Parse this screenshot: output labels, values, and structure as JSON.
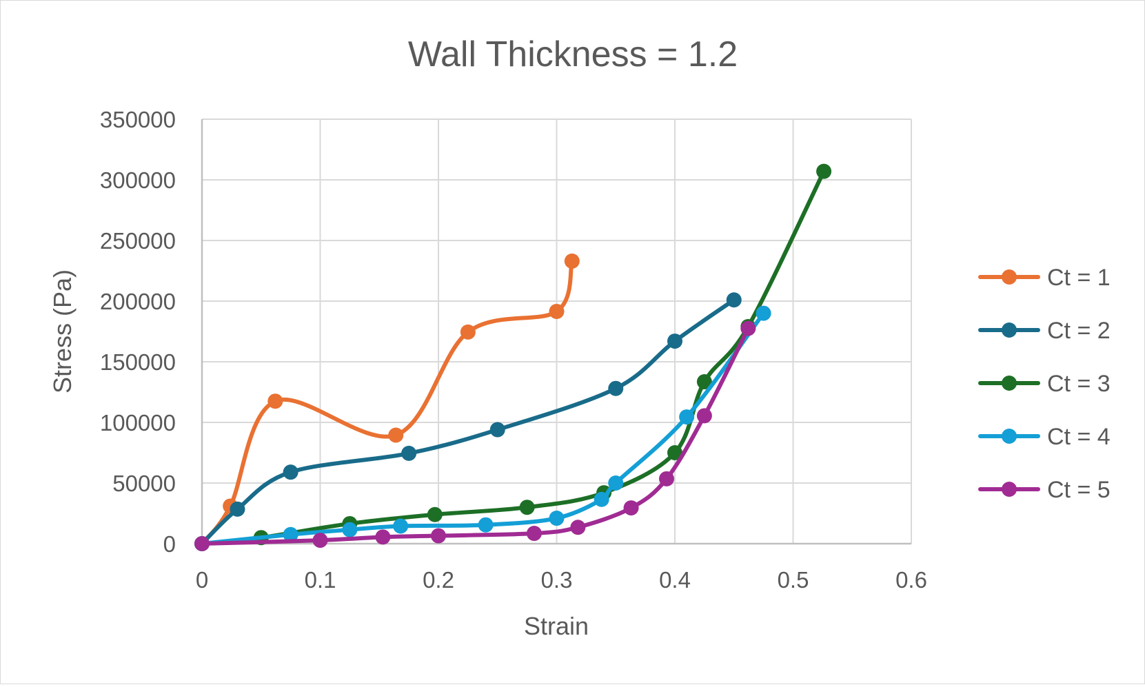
{
  "chart_data": {
    "type": "line",
    "title": "Wall Thickness  = 1.2",
    "xlabel": "Strain",
    "ylabel": "Stress (Pa)",
    "xlim": [
      0,
      0.6
    ],
    "ylim": [
      0,
      350000
    ],
    "xticks": [
      "0",
      "0.1",
      "0.2",
      "0.3",
      "0.4",
      "0.5",
      "0.6"
    ],
    "yticks": [
      "0",
      "50000",
      "100000",
      "150000",
      "200000",
      "250000",
      "300000",
      "350000"
    ],
    "xtick_values": [
      0,
      0.1,
      0.2,
      0.3,
      0.4,
      0.5,
      0.6
    ],
    "ytick_values": [
      0,
      50000,
      100000,
      150000,
      200000,
      250000,
      300000,
      350000
    ],
    "grid": true,
    "legend_position": "right",
    "series": [
      {
        "name": "Ct = 1",
        "color": "#E97132",
        "x": [
          0,
          0.024,
          0.062,
          0.164,
          0.225,
          0.3,
          0.313
        ],
        "y": [
          0,
          31000,
          117500,
          89500,
          174500,
          191500,
          233000
        ]
      },
      {
        "name": "Ct = 2",
        "color": "#196B8A",
        "x": [
          0,
          0.03,
          0.075,
          0.175,
          0.25,
          0.35,
          0.4,
          0.45
        ],
        "y": [
          0,
          28500,
          59000,
          74500,
          94000,
          128000,
          167000,
          201000
        ]
      },
      {
        "name": "Ct = 3",
        "color": "#1D6F26",
        "x": [
          0,
          0.05,
          0.125,
          0.197,
          0.275,
          0.34,
          0.4,
          0.425,
          0.462,
          0.526
        ],
        "y": [
          0,
          5000,
          16500,
          24000,
          30000,
          42000,
          75000,
          133500,
          179000,
          307000
        ]
      },
      {
        "name": "Ct = 4",
        "color": "#149FD6",
        "x": [
          0,
          0.075,
          0.125,
          0.168,
          0.24,
          0.3,
          0.338,
          0.35,
          0.41,
          0.475
        ],
        "y": [
          0,
          7500,
          11500,
          14500,
          15500,
          21000,
          36500,
          50000,
          104500,
          190000
        ]
      },
      {
        "name": "Ct = 5",
        "color": "#A02B93",
        "x": [
          0,
          0.1,
          0.153,
          0.2,
          0.281,
          0.318,
          0.363,
          0.393,
          0.425,
          0.462
        ],
        "y": [
          0,
          2800,
          5500,
          6500,
          8500,
          13500,
          29500,
          53500,
          105500,
          177500
        ]
      }
    ]
  }
}
